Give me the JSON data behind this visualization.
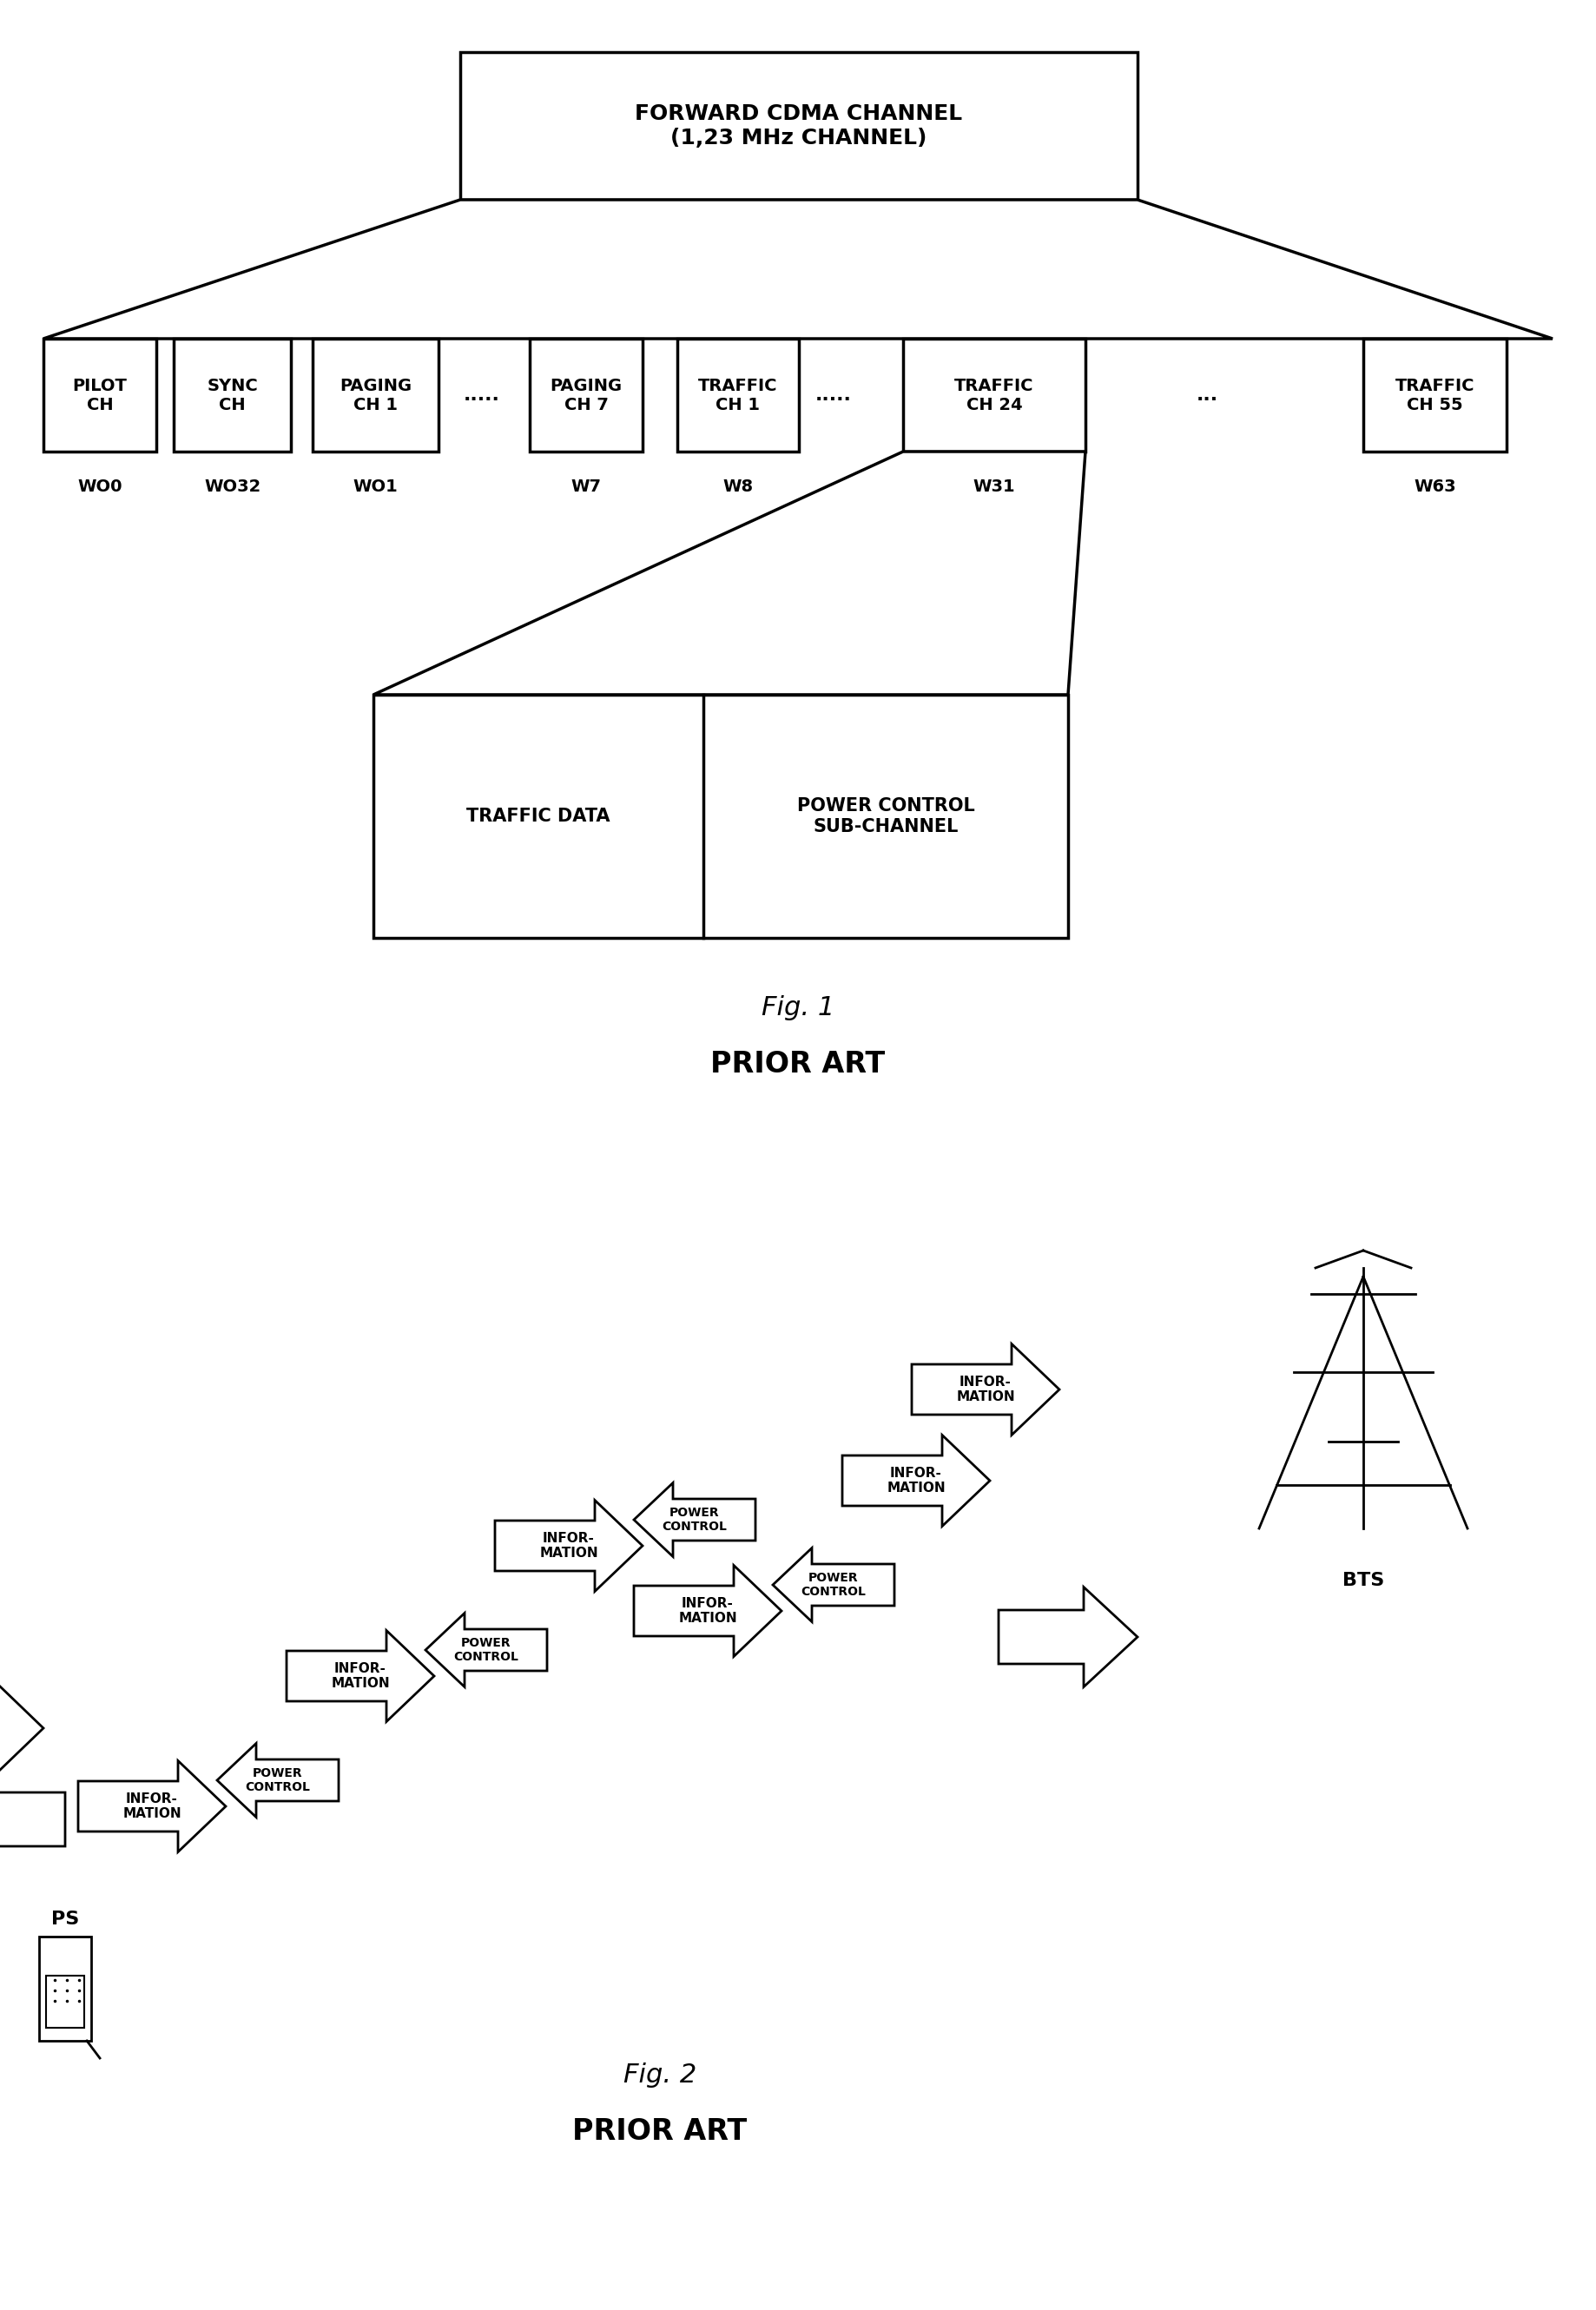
{
  "fig1_title": "FORWARD CDMA CHANNEL\n(1,23 MHz CHANNEL)",
  "fig1_caption": "Fig. 1",
  "fig1_sub": "PRIOR ART",
  "fig2_caption": "Fig. 2",
  "fig2_sub": "PRIOR ART",
  "channels": [
    {
      "label": "PILOT\nCH",
      "w": "WO0"
    },
    {
      "label": "SYNC\nCH",
      "w": "WO32"
    },
    {
      "label": "PAGING\nCH 1",
      "w": "WO1"
    },
    {
      "label": "PAGING\nCH 7",
      "w": "W7"
    },
    {
      "label": "TRAFFIC\nCH 1",
      "w": "W8"
    },
    {
      "label": "TRAFFIC\nCH 24",
      "w": "W31"
    },
    {
      "label": "TRAFFIC\nCH 55",
      "w": "W63"
    }
  ],
  "sub_channels": [
    "TRAFFIC DATA",
    "POWER CONTROL\nSUB-CHANNEL"
  ],
  "bg_color": "#ffffff",
  "box_color": "#000000",
  "text_color": "#000000"
}
